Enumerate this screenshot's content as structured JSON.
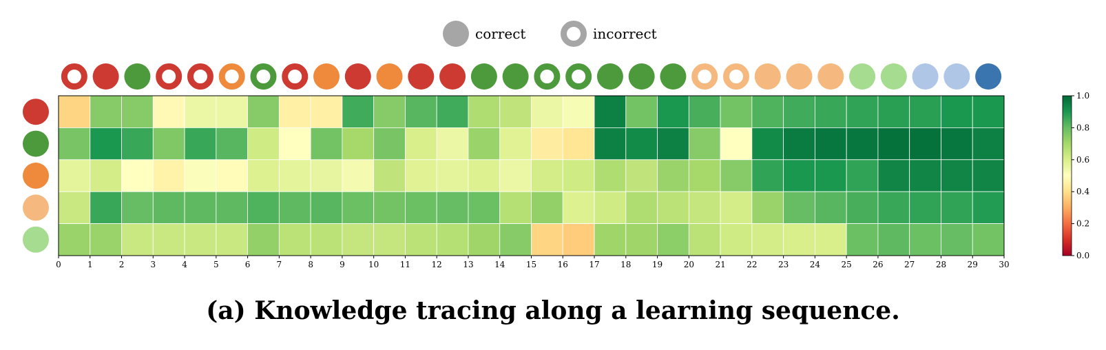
{
  "caption": "(a) Knowledge tracing along a learning sequence.",
  "legend": {
    "correct_label": "correct",
    "incorrect_label": "incorrect",
    "marker_color": "#a6a6a6"
  },
  "colorbar": {
    "ticks": [
      "0.0",
      "0.2",
      "0.4",
      "0.6",
      "0.8",
      "1.0"
    ],
    "range": [
      0,
      1
    ],
    "colormap": "RdYlGn"
  },
  "chart_data": {
    "type": "heatmap",
    "title": "",
    "xlabel": "",
    "ylabel": "",
    "x_ticks": [
      "0",
      "1",
      "2",
      "3",
      "4",
      "5",
      "6",
      "7",
      "8",
      "9",
      "10",
      "11",
      "12",
      "13",
      "14",
      "15",
      "16",
      "17",
      "18",
      "19",
      "20",
      "21",
      "22",
      "23",
      "24",
      "25",
      "26",
      "27",
      "28",
      "29",
      "30"
    ],
    "concept_colors": [
      "#cd3a32",
      "#4c9a3b",
      "#ef8a3c",
      "#f5b97f",
      "#a5dc8f"
    ],
    "sequence": [
      {
        "concept": 0,
        "correct": false
      },
      {
        "concept": 0,
        "correct": true
      },
      {
        "concept": 1,
        "correct": true
      },
      {
        "concept": 0,
        "correct": false
      },
      {
        "concept": 0,
        "correct": false
      },
      {
        "concept": 2,
        "correct": false
      },
      {
        "concept": 1,
        "correct": false
      },
      {
        "concept": 0,
        "correct": false
      },
      {
        "concept": 2,
        "correct": true
      },
      {
        "concept": 0,
        "correct": true
      },
      {
        "concept": 2,
        "correct": true
      },
      {
        "concept": 0,
        "correct": true
      },
      {
        "concept": 0,
        "correct": true
      },
      {
        "concept": 1,
        "correct": true
      },
      {
        "concept": 1,
        "correct": true
      },
      {
        "concept": 1,
        "correct": false
      },
      {
        "concept": 1,
        "correct": false
      },
      {
        "concept": 1,
        "correct": true
      },
      {
        "concept": 1,
        "correct": true
      },
      {
        "concept": 1,
        "correct": true
      },
      {
        "concept": 3,
        "correct": false
      },
      {
        "concept": 3,
        "correct": false
      },
      {
        "concept": 3,
        "correct": true
      },
      {
        "concept": 3,
        "correct": true
      },
      {
        "concept": 3,
        "correct": true
      },
      {
        "concept": 4,
        "correct": true
      },
      {
        "concept": 4,
        "correct": true
      },
      {
        "concept": 5,
        "correct": true
      },
      {
        "concept": 5,
        "correct": true
      },
      {
        "concept": 6,
        "correct": true
      }
    ],
    "extra_marker_colors": [
      "#afc6e6",
      "#3a75b0"
    ],
    "values": [
      [
        0.38,
        0.75,
        0.75,
        0.48,
        0.55,
        0.55,
        0.75,
        0.45,
        0.45,
        0.85,
        0.75,
        0.82,
        0.85,
        0.68,
        0.65,
        0.55,
        0.52,
        0.95,
        0.78,
        0.9,
        0.84,
        0.78,
        0.83,
        0.85,
        0.86,
        0.87,
        0.88,
        0.88,
        0.9,
        0.9
      ],
      [
        0.77,
        0.9,
        0.86,
        0.76,
        0.86,
        0.82,
        0.62,
        0.5,
        0.78,
        0.7,
        0.77,
        0.6,
        0.55,
        0.72,
        0.58,
        0.44,
        0.42,
        0.95,
        0.93,
        0.95,
        0.75,
        0.5,
        0.93,
        0.96,
        0.97,
        0.97,
        0.98,
        0.98,
        0.97,
        0.95
      ],
      [
        0.57,
        0.61,
        0.5,
        0.46,
        0.51,
        0.49,
        0.59,
        0.57,
        0.56,
        0.53,
        0.65,
        0.58,
        0.57,
        0.59,
        0.55,
        0.61,
        0.62,
        0.68,
        0.65,
        0.72,
        0.7,
        0.75,
        0.87,
        0.9,
        0.9,
        0.87,
        0.94,
        0.94,
        0.94,
        0.94
      ],
      [
        0.63,
        0.86,
        0.8,
        0.81,
        0.81,
        0.81,
        0.83,
        0.81,
        0.82,
        0.79,
        0.78,
        0.79,
        0.8,
        0.79,
        0.67,
        0.73,
        0.59,
        0.62,
        0.68,
        0.66,
        0.64,
        0.61,
        0.72,
        0.8,
        0.82,
        0.84,
        0.86,
        0.87,
        0.87,
        0.89
      ],
      [
        0.72,
        0.72,
        0.63,
        0.63,
        0.63,
        0.63,
        0.73,
        0.66,
        0.66,
        0.64,
        0.64,
        0.66,
        0.67,
        0.71,
        0.75,
        0.38,
        0.36,
        0.71,
        0.71,
        0.74,
        0.66,
        0.62,
        0.61,
        0.6,
        0.6,
        0.79,
        0.81,
        0.79,
        0.8,
        0.78
      ]
    ]
  }
}
